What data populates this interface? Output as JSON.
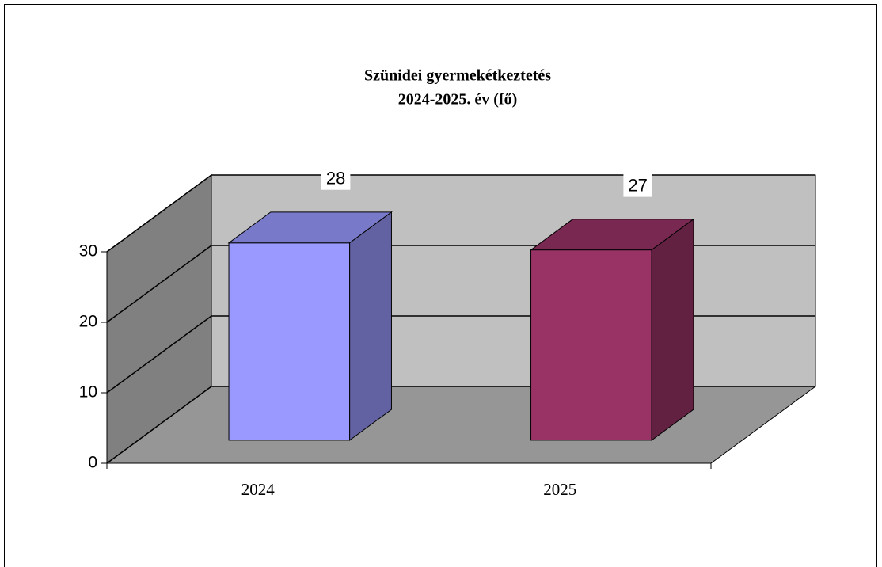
{
  "chart_data": {
    "type": "bar",
    "title": "Szünidei gyermekétkeztetés",
    "subtitle": "2024-2025. év (fő)",
    "categories": [
      "2024",
      "2025"
    ],
    "values": [
      28,
      27
    ],
    "colors": [
      "#9999ff",
      "#993366"
    ],
    "ylim": [
      0,
      30
    ],
    "yticks": [
      0,
      10,
      20,
      30
    ],
    "grid": true
  }
}
